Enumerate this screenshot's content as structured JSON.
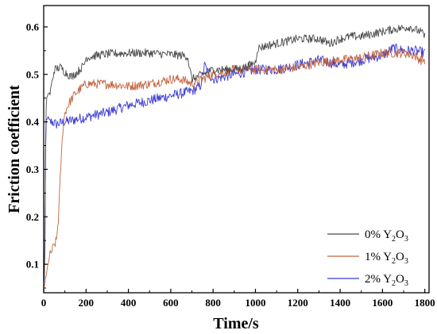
{
  "chart_data": {
    "type": "line",
    "xlabel": "Time/s",
    "ylabel": "Friction coefficient",
    "xlim": [
      0,
      1820
    ],
    "ylim": [
      0.04,
      0.645
    ],
    "x_ticks": [
      0,
      200,
      400,
      600,
      800,
      1000,
      1200,
      1400,
      1600,
      1800
    ],
    "y_ticks": [
      0.1,
      0.2,
      0.3,
      0.4,
      0.5,
      0.6
    ],
    "x_tick_labels": [
      "0",
      "200",
      "400",
      "600",
      "800",
      "1000",
      "1200",
      "1400",
      "1600",
      "1800"
    ],
    "y_tick_labels": [
      "0.1",
      "0.2",
      "0.3",
      "0.4",
      "0.5",
      "0.6"
    ],
    "grid": false,
    "legend_position": "bottom-right",
    "series": [
      {
        "name_prefix": "0% Y",
        "name_sub1": "2",
        "name_mid": "O",
        "name_sub2": "3",
        "color": "#4a4a4a",
        "noise": 0.009,
        "x": [
          0,
          5,
          10,
          15,
          20,
          30,
          50,
          80,
          100,
          130,
          160,
          190,
          200,
          250,
          300,
          400,
          500,
          600,
          650,
          680,
          690,
          700,
          750,
          800,
          850,
          900,
          950,
          1000,
          1010,
          1050,
          1100,
          1150,
          1200,
          1250,
          1300,
          1350,
          1400,
          1450,
          1500,
          1550,
          1600,
          1650,
          1700,
          1730,
          1750,
          1780,
          1800
        ],
        "y": [
          0.07,
          0.09,
          0.42,
          0.45,
          0.46,
          0.46,
          0.51,
          0.515,
          0.505,
          0.495,
          0.505,
          0.52,
          0.535,
          0.54,
          0.543,
          0.545,
          0.545,
          0.542,
          0.54,
          0.538,
          0.51,
          0.49,
          0.5,
          0.51,
          0.51,
          0.51,
          0.515,
          0.525,
          0.555,
          0.56,
          0.565,
          0.57,
          0.575,
          0.575,
          0.575,
          0.565,
          0.575,
          0.58,
          0.58,
          0.585,
          0.59,
          0.595,
          0.598,
          0.6,
          0.595,
          0.59,
          0.58
        ]
      },
      {
        "name_prefix": "1% Y",
        "name_sub1": "2",
        "name_mid": "O",
        "name_sub2": "3",
        "color": "#c2653f",
        "noise": 0.01,
        "x": [
          0,
          10,
          20,
          30,
          40,
          50,
          60,
          70,
          80,
          90,
          100,
          120,
          150,
          200,
          300,
          400,
          500,
          600,
          650,
          700,
          750,
          800,
          900,
          1000,
          1100,
          1200,
          1300,
          1400,
          1500,
          1600,
          1700,
          1750,
          1780,
          1800
        ],
        "y": [
          0.05,
          0.07,
          0.1,
          0.12,
          0.13,
          0.14,
          0.15,
          0.2,
          0.3,
          0.38,
          0.42,
          0.44,
          0.46,
          0.48,
          0.48,
          0.475,
          0.48,
          0.49,
          0.49,
          0.48,
          0.49,
          0.5,
          0.51,
          0.51,
          0.51,
          0.515,
          0.525,
          0.53,
          0.535,
          0.545,
          0.545,
          0.54,
          0.53,
          0.53
        ]
      },
      {
        "name_prefix": "2% Y",
        "name_sub1": "2",
        "name_mid": "O",
        "name_sub2": "3",
        "color": "#3b3bd4",
        "noise": 0.011,
        "x": [
          0,
          5,
          10,
          20,
          30,
          40,
          60,
          100,
          150,
          200,
          300,
          400,
          500,
          600,
          700,
          740,
          760,
          780,
          800,
          900,
          1000,
          1100,
          1200,
          1300,
          1400,
          1500,
          1600,
          1650,
          1700,
          1750,
          1800
        ],
        "y": [
          0.06,
          0.08,
          0.4,
          0.41,
          0.4,
          0.4,
          0.395,
          0.4,
          0.405,
          0.41,
          0.42,
          0.435,
          0.445,
          0.455,
          0.465,
          0.475,
          0.52,
          0.5,
          0.49,
          0.5,
          0.51,
          0.51,
          0.52,
          0.53,
          0.52,
          0.53,
          0.54,
          0.555,
          0.55,
          0.55,
          0.545
        ]
      }
    ]
  }
}
